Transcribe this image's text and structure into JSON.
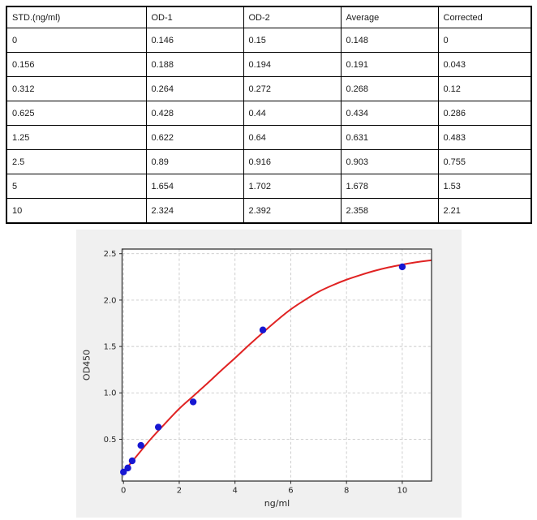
{
  "table": {
    "columns": [
      "STD.(ng/ml)",
      "OD-1",
      "OD-2",
      "Average",
      "Corrected"
    ],
    "rows": [
      [
        "0",
        "0.146",
        "0.15",
        "0.148",
        "0"
      ],
      [
        "0.156",
        "0.188",
        "0.194",
        "0.191",
        "0.043"
      ],
      [
        "0.312",
        "0.264",
        "0.272",
        "0.268",
        "0.12"
      ],
      [
        "0.625",
        "0.428",
        "0.44",
        "0.434",
        "0.286"
      ],
      [
        "1.25",
        "0.622",
        "0.64",
        "0.631",
        "0.483"
      ],
      [
        "2.5",
        "0.89",
        "0.916",
        "0.903",
        "0.755"
      ],
      [
        "5",
        "1.654",
        "1.702",
        "1.678",
        "1.53"
      ],
      [
        "10",
        "2.324",
        "2.392",
        "2.358",
        "2.21"
      ]
    ]
  },
  "chart_data": {
    "type": "scatter",
    "title": "",
    "xlabel": "ng/ml",
    "ylabel": "OD450",
    "xlim": [
      -0.05,
      11.05
    ],
    "ylim": [
      0.05,
      2.55
    ],
    "x_ticks": [
      0,
      2,
      4,
      6,
      8,
      10
    ],
    "x_tick_labels": [
      "0",
      "2",
      "4",
      "6",
      "8",
      "10"
    ],
    "y_ticks": [
      0.5,
      1.0,
      1.5,
      2.0,
      2.5
    ],
    "y_tick_labels": [
      "0.5",
      "1.0",
      "1.5",
      "2.0",
      "2.5"
    ],
    "grid": true,
    "legend_position": "none",
    "series": [
      {
        "name": "standard-points",
        "type": "scatter",
        "x": [
          0,
          0.156,
          0.312,
          0.625,
          1.25,
          2.5,
          5,
          10
        ],
        "y": [
          0.148,
          0.191,
          0.268,
          0.434,
          0.631,
          0.903,
          1.678,
          2.358
        ]
      },
      {
        "name": "fitted-curve",
        "type": "line",
        "x": [
          0,
          0.5,
          1,
          1.5,
          2,
          2.5,
          3,
          3.5,
          4,
          4.5,
          5,
          5.5,
          6,
          6.5,
          7,
          7.5,
          8,
          8.5,
          9,
          9.5,
          10,
          10.5,
          11.05
        ],
        "y": [
          0.148,
          0.33,
          0.51,
          0.672,
          0.83,
          0.965,
          1.1,
          1.24,
          1.375,
          1.515,
          1.65,
          1.78,
          1.9,
          2.0,
          2.09,
          2.16,
          2.22,
          2.27,
          2.315,
          2.352,
          2.382,
          2.408,
          2.43
        ]
      }
    ],
    "colors": {
      "point": "#1717d2",
      "line": "#e02222",
      "figure_bg": "#f0f0f0",
      "plot_bg": "#ffffff",
      "grid": "#c9c9c9",
      "axis": "#262626",
      "text": "#262626"
    }
  }
}
